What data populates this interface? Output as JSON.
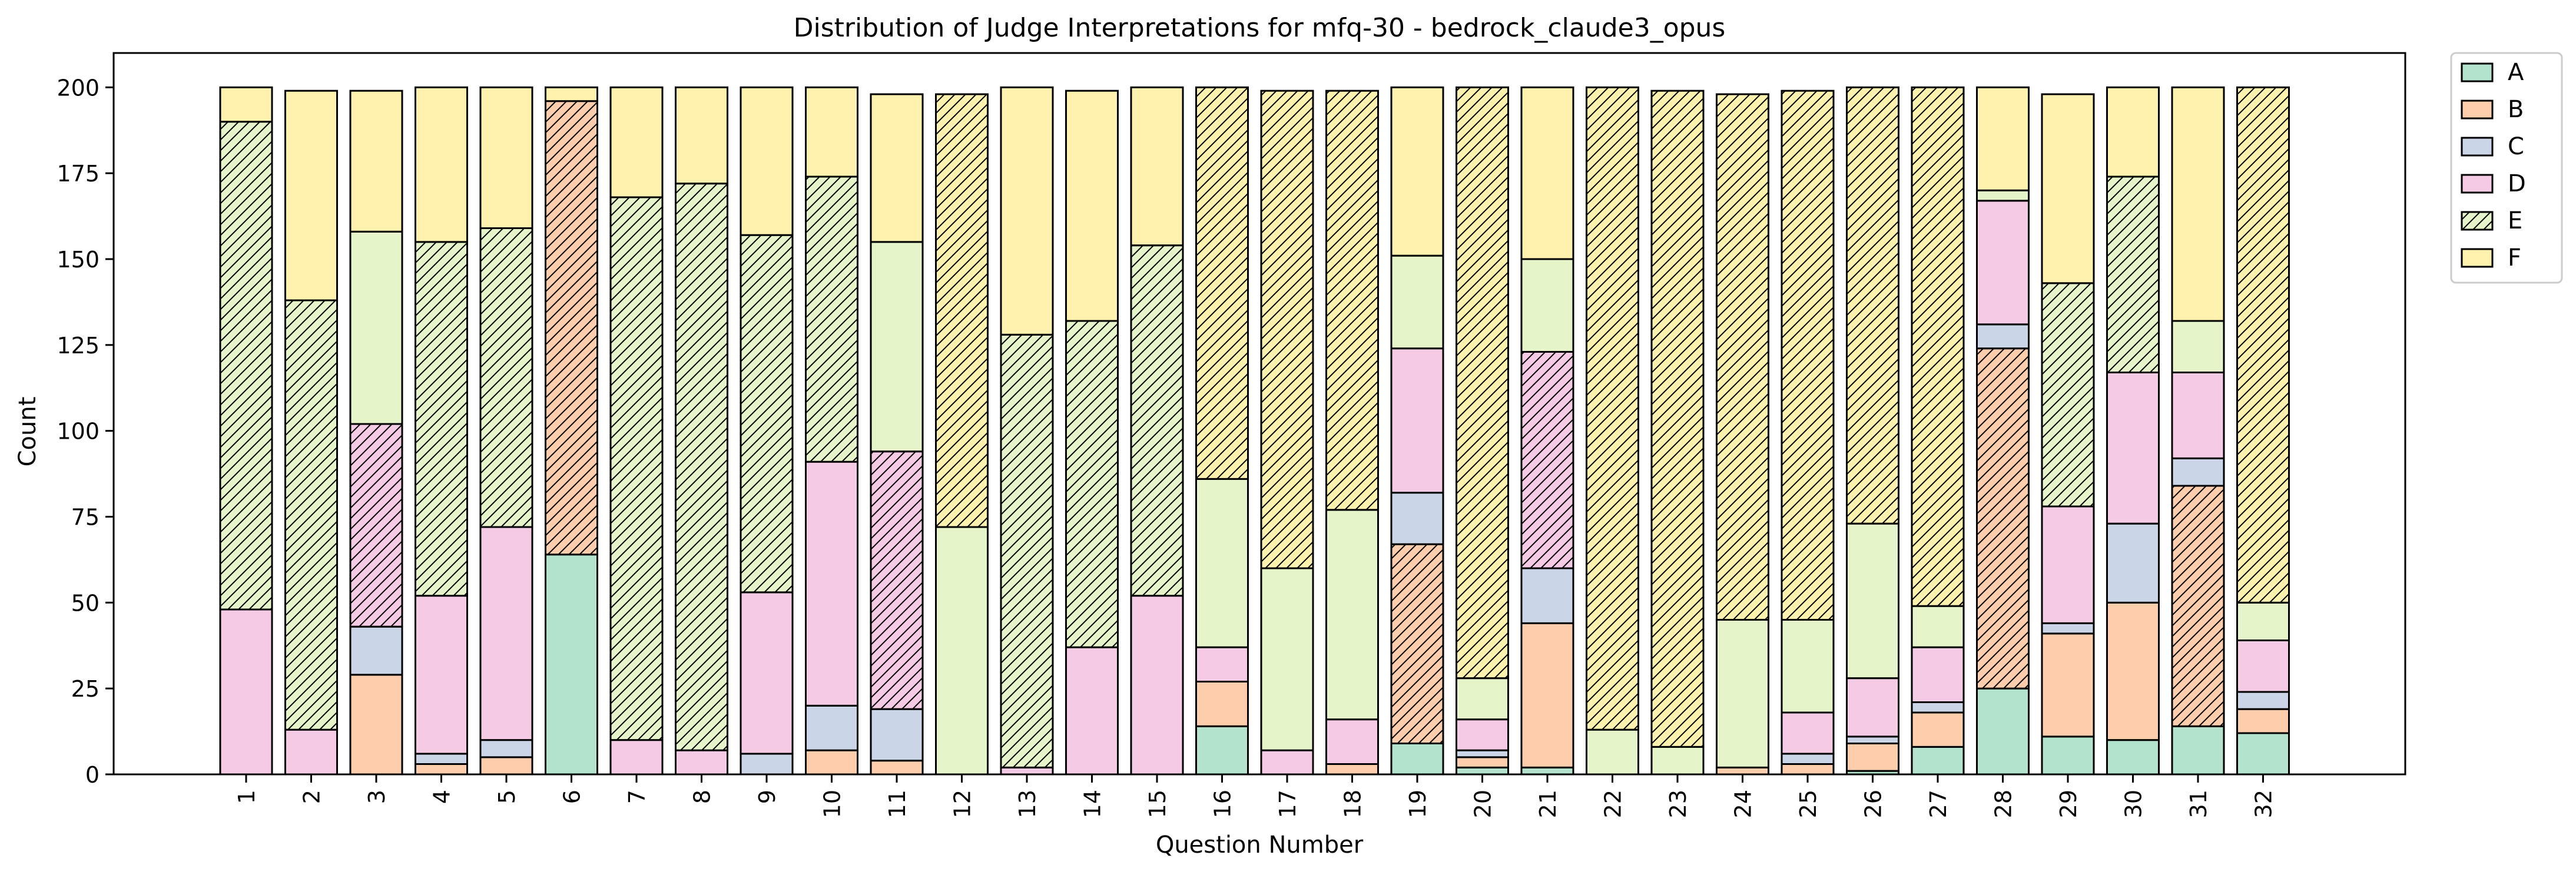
{
  "chart_data": {
    "type": "bar",
    "stacked": true,
    "title": "Distribution of Judge Interpretations for mfq-30 - bedrock_claude3_opus",
    "xlabel": "Question Number",
    "ylabel": "Count",
    "ylim": [
      0,
      210
    ],
    "yticks": [
      0,
      25,
      50,
      75,
      100,
      125,
      150,
      175,
      200
    ],
    "categories": [
      "1",
      "2",
      "3",
      "4",
      "5",
      "6",
      "7",
      "8",
      "9",
      "10",
      "11",
      "12",
      "13",
      "14",
      "15",
      "16",
      "17",
      "18",
      "19",
      "20",
      "21",
      "22",
      "23",
      "24",
      "25",
      "26",
      "27",
      "28",
      "29",
      "30",
      "31",
      "32"
    ],
    "legend_position": "outside top-right",
    "grid": false,
    "hatched_note": "the majority category of each bar is drawn with diagonal hatching",
    "series": [
      {
        "name": "A",
        "color": "#b3e2cd",
        "values": [
          0,
          0,
          0,
          0,
          0,
          64,
          0,
          0,
          0,
          0,
          0,
          0,
          0,
          0,
          0,
          14,
          0,
          0,
          9,
          2,
          2,
          0,
          0,
          0,
          0,
          1,
          8,
          25,
          11,
          10,
          14,
          12
        ]
      },
      {
        "name": "B",
        "color": "#fdcdac",
        "values": [
          0,
          0,
          29,
          3,
          5,
          132,
          0,
          0,
          0,
          7,
          4,
          0,
          0,
          0,
          0,
          13,
          0,
          3,
          58,
          3,
          42,
          0,
          0,
          2,
          3,
          8,
          10,
          99,
          30,
          40,
          70,
          7
        ]
      },
      {
        "name": "C",
        "color": "#cbd5e8",
        "values": [
          0,
          0,
          14,
          3,
          5,
          0,
          0,
          0,
          6,
          13,
          15,
          0,
          0,
          0,
          0,
          0,
          0,
          0,
          15,
          2,
          16,
          0,
          0,
          0,
          3,
          2,
          3,
          7,
          3,
          23,
          8,
          5
        ]
      },
      {
        "name": "D",
        "color": "#f4cae4",
        "values": [
          48,
          13,
          59,
          46,
          62,
          0,
          10,
          7,
          47,
          71,
          75,
          0,
          2,
          37,
          52,
          10,
          7,
          13,
          42,
          9,
          63,
          0,
          0,
          0,
          12,
          17,
          16,
          36,
          34,
          44,
          25,
          15
        ]
      },
      {
        "name": "E",
        "color": "#e6f5c9",
        "values": [
          142,
          125,
          56,
          103,
          87,
          0,
          158,
          165,
          104,
          83,
          61,
          72,
          126,
          95,
          102,
          49,
          53,
          61,
          27,
          12,
          27,
          13,
          8,
          43,
          27,
          45,
          12,
          3,
          65,
          57,
          15,
          11
        ]
      },
      {
        "name": "F",
        "color": "#fff2ae",
        "values": [
          10,
          61,
          41,
          45,
          41,
          4,
          32,
          28,
          43,
          26,
          43,
          126,
          72,
          67,
          46,
          114,
          139,
          122,
          49,
          172,
          50,
          187,
          191,
          153,
          154,
          127,
          151,
          30,
          55,
          26,
          68,
          150
        ]
      }
    ],
    "hatched_series_per_bar": [
      "E",
      "E",
      "D",
      "E",
      "E",
      "B",
      "E",
      "E",
      "E",
      "E",
      "D",
      "F",
      "E",
      "E",
      "E",
      "F",
      "F",
      "F",
      "B",
      "F",
      "D",
      "F",
      "F",
      "F",
      "F",
      "F",
      "F",
      "B",
      "E",
      "E",
      "B",
      "F"
    ]
  }
}
